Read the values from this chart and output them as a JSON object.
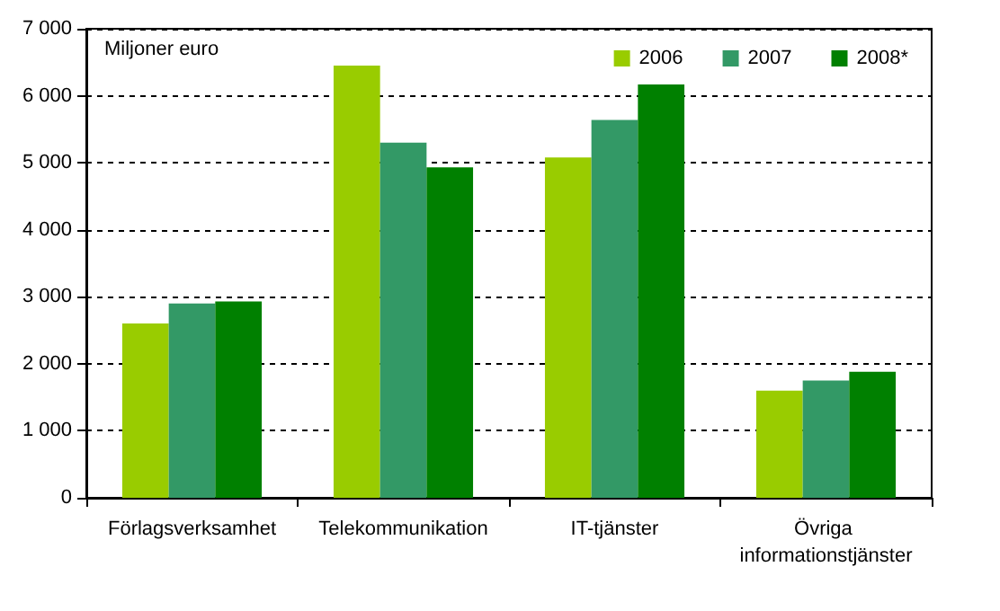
{
  "chart_data": {
    "type": "bar",
    "ylabel": "Miljoner euro",
    "categories": [
      "Förlagsverksamhet",
      "Telekommunikation",
      "IT-tjänster",
      "Övriga informationstjänster"
    ],
    "series": [
      {
        "name": "2006",
        "color": "#99cc00",
        "values": [
          2600,
          6450,
          5080,
          1600
        ]
      },
      {
        "name": "2007",
        "color": "#339966",
        "values": [
          2900,
          5300,
          5640,
          1750
        ]
      },
      {
        "name": "2008*",
        "color": "#008000",
        "values": [
          2930,
          4930,
          6170,
          1880
        ]
      }
    ],
    "ylim": [
      0,
      7000
    ],
    "yticks": [
      0,
      1000,
      2000,
      3000,
      4000,
      5000,
      6000,
      7000
    ],
    "grid": "y",
    "legend": "top right"
  }
}
